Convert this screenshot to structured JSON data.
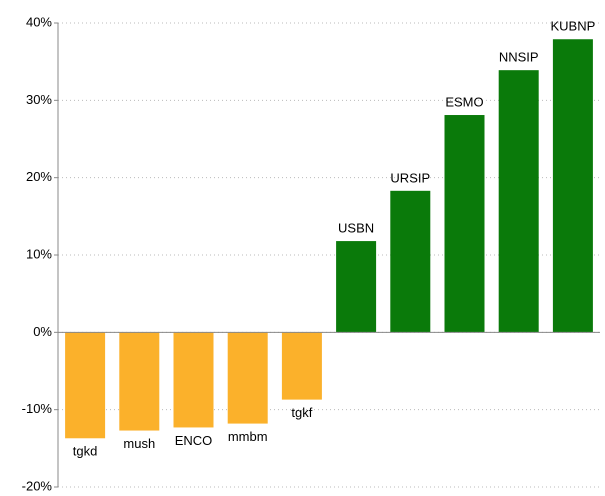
{
  "chart_data": {
    "type": "bar",
    "categories": [
      "tgkd",
      "mush",
      "ENCO",
      "mmbm",
      "tgkf",
      "USBN",
      "URSIP",
      "ESMO",
      "NNSIP",
      "KUBNP"
    ],
    "values": [
      -13.7,
      -12.7,
      -12.3,
      -11.8,
      -8.7,
      11.8,
      18.3,
      28.1,
      33.9,
      37.9
    ],
    "colors": [
      "#fbb12b",
      "#fbb12b",
      "#fbb12b",
      "#fbb12b",
      "#fbb12b",
      "#0a7a0a",
      "#0a7a0a",
      "#0a7a0a",
      "#0a7a0a",
      "#0a7a0a"
    ],
    "ylim": [
      -20,
      40
    ],
    "yticks": [
      {
        "value": -20,
        "label": "-20%"
      },
      {
        "value": -10,
        "label": "-10%"
      },
      {
        "value": 0,
        "label": "0%"
      },
      {
        "value": 10,
        "label": "10%"
      },
      {
        "value": 20,
        "label": "20%"
      },
      {
        "value": 30,
        "label": "30%"
      },
      {
        "value": 40,
        "label": "40%"
      }
    ],
    "grid": true
  }
}
